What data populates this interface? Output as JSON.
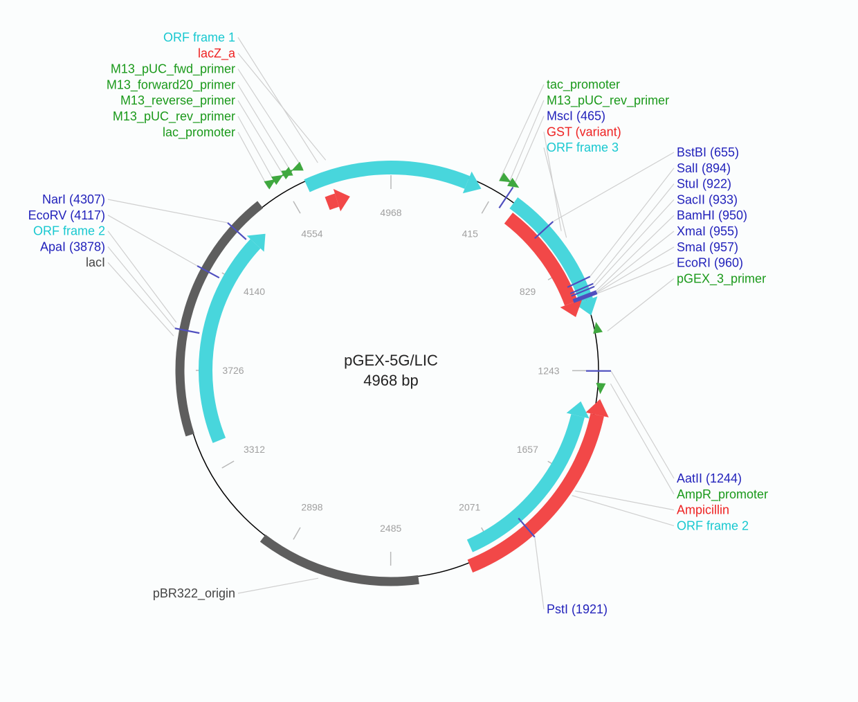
{
  "plasmid": {
    "name": "pGEX-5G/LIC",
    "size_label": "4968 bp",
    "length": 4968
  },
  "colors": {
    "cyan": "#48d6dc",
    "red": "#f24848",
    "gray": "#5e5e5e",
    "green": "#3fa83f",
    "site_line": "#4f4fbf",
    "label_site": "#2222bb",
    "label_feature_green": "#1a991a",
    "label_red": "#ee2222",
    "label_cyan": "#18c8d0",
    "label_gray": "#444444"
  },
  "ticks": [
    "4968",
    "415",
    "829",
    "1243",
    "1657",
    "2071",
    "2485",
    "2898",
    "3312",
    "3726",
    "4140",
    "4554"
  ],
  "features": [
    {
      "name": "ORF frame 1",
      "start": 4630,
      "end": 365,
      "color": "cyan",
      "strand": 1
    },
    {
      "name": "lacZ_a",
      "start": 4680,
      "end": 4785,
      "color": "red",
      "strand": 1
    },
    {
      "name": "ORF frame 3",
      "start": 500,
      "end": 1030,
      "color": "cyan",
      "strand": 1
    },
    {
      "name": "GST (variant)",
      "start": 520,
      "end": 1020,
      "color": "red",
      "strand": 1
    },
    {
      "name": "Ampicillin",
      "start": 1350,
      "end": 2180,
      "color": "red",
      "strand": -1
    },
    {
      "name": "ORF frame 2",
      "start": 1370,
      "end": 2150,
      "color": "cyan",
      "strand": -1
    },
    {
      "name": "pBR322_origin",
      "start": 2380,
      "end": 3000,
      "color": "gray",
      "strand": 0
    },
    {
      "name": "lacI",
      "start": 3480,
      "end": 4440,
      "color": "gray",
      "strand": 0
    },
    {
      "name": "ORF frame 2",
      "start": 3420,
      "end": 4380,
      "color": "cyan",
      "strand": 1
    }
  ],
  "primers": [
    {
      "name": "M13_pUC_fwd_primer",
      "pos": 4642,
      "strand": -1
    },
    {
      "name": "M13_forward20_primer",
      "pos": 4600,
      "strand": -1
    },
    {
      "name": "M13_reverse_primer",
      "pos": 4570,
      "strand": 1
    },
    {
      "name": "M13_pUC_rev_primer",
      "pos": 4530,
      "strand": 1
    },
    {
      "name": "lac_promoter",
      "pos": 4500,
      "strand": 1
    },
    {
      "name": "tac_promoter",
      "pos": 410,
      "strand": 1
    },
    {
      "name": "M13_pUC_rev_primer",
      "pos": 445,
      "strand": 1
    },
    {
      "name": "pGEX_3_primer",
      "pos": 1100,
      "strand": -1
    },
    {
      "name": "AmpR_promoter",
      "pos": 1290,
      "strand": 1
    }
  ],
  "sites": [
    {
      "name": "MscI",
      "pos": 465
    },
    {
      "name": "BstBI",
      "pos": 655
    },
    {
      "name": "SalI",
      "pos": 894
    },
    {
      "name": "StuI",
      "pos": 922
    },
    {
      "name": "SacII",
      "pos": 933
    },
    {
      "name": "BamHI",
      "pos": 950
    },
    {
      "name": "XmaI",
      "pos": 955
    },
    {
      "name": "SmaI",
      "pos": 957
    },
    {
      "name": "EcoRI",
      "pos": 960
    },
    {
      "name": "AatII",
      "pos": 1244
    },
    {
      "name": "PstI",
      "pos": 1921
    },
    {
      "name": "NarI",
      "pos": 4307
    },
    {
      "name": "EcoRV",
      "pos": 4117
    },
    {
      "name": "ApaI",
      "pos": 3878
    }
  ],
  "label_groups": {
    "top_left": [
      {
        "text": "ORF frame 1",
        "color": "label_cyan",
        "pos": 4700
      },
      {
        "text": "lacZ_a",
        "color": "label_red",
        "pos": 4730
      },
      {
        "text": "M13_pUC_fwd_primer",
        "color": "label_feature_green",
        "pos": 4642
      },
      {
        "text": "M13_forward20_primer",
        "color": "label_feature_green",
        "pos": 4600
      },
      {
        "text": "M13_reverse_primer",
        "color": "label_feature_green",
        "pos": 4570
      },
      {
        "text": "M13_pUC_rev_primer",
        "color": "label_feature_green",
        "pos": 4530
      },
      {
        "text": "lac_promoter",
        "color": "label_feature_green",
        "pos": 4500
      }
    ],
    "top_right": [
      {
        "text": "tac_promoter",
        "color": "label_feature_green",
        "pos": 410
      },
      {
        "text": "M13_pUC_rev_primer",
        "color": "label_feature_green",
        "pos": 445
      },
      {
        "text": "MscI (465)",
        "color": "label_site",
        "pos": 465
      },
      {
        "text": "GST (variant)",
        "color": "label_red",
        "pos": 700
      },
      {
        "text": "ORF frame 3",
        "color": "label_cyan",
        "pos": 730
      }
    ],
    "right_upper": [
      {
        "text": "BstBI (655)",
        "color": "label_site",
        "pos": 655
      },
      {
        "text": "SalI (894)",
        "color": "label_site",
        "pos": 894
      },
      {
        "text": "StuI (922)",
        "color": "label_site",
        "pos": 922
      },
      {
        "text": "SacII (933)",
        "color": "label_site",
        "pos": 933
      },
      {
        "text": "BamHI (950)",
        "color": "label_site",
        "pos": 950
      },
      {
        "text": "XmaI (955)",
        "color": "label_site",
        "pos": 955
      },
      {
        "text": "SmaI (957)",
        "color": "label_site",
        "pos": 957
      },
      {
        "text": "EcoRI (960)",
        "color": "label_site",
        "pos": 960
      },
      {
        "text": "pGEX_3_primer",
        "color": "label_feature_green",
        "pos": 1100
      }
    ],
    "right_lower": [
      {
        "text": "AatII (1244)",
        "color": "label_site",
        "pos": 1244
      },
      {
        "text": "AmpR_promoter",
        "color": "label_feature_green",
        "pos": 1290
      },
      {
        "text": "Ampicillin",
        "color": "label_red",
        "pos": 1700
      },
      {
        "text": "ORF frame 2",
        "color": "label_cyan",
        "pos": 1720
      }
    ],
    "bottom": [
      {
        "text": "PstI (1921)",
        "color": "label_site",
        "pos": 1921
      }
    ],
    "left": [
      {
        "text": "NarI (4307)",
        "color": "label_site",
        "pos": 4307
      },
      {
        "text": "EcoRV (4117)",
        "color": "label_site",
        "pos": 4117
      },
      {
        "text": "ORF frame 2",
        "color": "label_cyan",
        "pos": 3900
      },
      {
        "text": "ApaI (3878)",
        "color": "label_site",
        "pos": 3878
      },
      {
        "text": "lacI",
        "color": "label_gray",
        "pos": 3850
      }
    ],
    "bottom_left": [
      {
        "text": "pBR322_origin",
        "color": "label_gray",
        "pos": 2750
      }
    ]
  }
}
